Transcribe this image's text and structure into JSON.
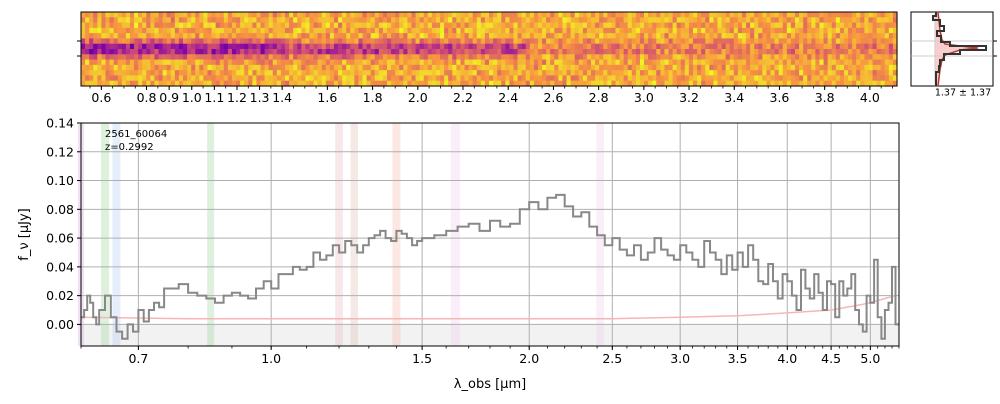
{
  "chart_data": [
    {
      "type": "heatmap",
      "panel": "2d-spectrum",
      "colormap": "plasma",
      "x_tick_labels": [
        "0.6",
        "0.8",
        "0.9",
        "1.0",
        "1.1",
        "1.2",
        "1.3",
        "1.4",
        "1.6",
        "1.8",
        "2.0",
        "2.2",
        "2.4",
        "2.6",
        "2.8",
        "3.0",
        "3.2",
        "3.4",
        "3.6",
        "3.8",
        "4.0"
      ],
      "x_ticks": [
        0.6,
        0.8,
        0.9,
        1.0,
        1.1,
        1.2,
        1.3,
        1.4,
        1.6,
        1.8,
        2.0,
        2.2,
        2.4,
        2.6,
        2.8,
        3.0,
        3.2,
        3.4,
        3.6,
        3.8,
        4.0
      ],
      "xlim": [
        0.51,
        4.12
      ]
    },
    {
      "type": "line",
      "panel": "profile",
      "annotation": "1.37 ± 1.37",
      "colors": {
        "data": "#333333",
        "model_fill": "#f4c2c2",
        "model_line": "#c0392b"
      }
    },
    {
      "type": "line",
      "panel": "1d-spectrum",
      "title": "",
      "annotation_lines": [
        "2561_60064",
        "z=0.2992"
      ],
      "xlabel": "λ_obs [μm]",
      "ylabel": "f_ν [μJy]",
      "x_scale": "log",
      "xlim": [
        0.6,
        5.4
      ],
      "ylim": [
        -0.015,
        0.14
      ],
      "x_ticks": [
        0.7,
        1.0,
        1.5,
        2.0,
        2.5,
        3.0,
        3.5,
        4.0,
        4.5,
        5.0
      ],
      "x_tick_labels": [
        "0.7",
        "1.0",
        "1.5",
        "2.0",
        "2.5",
        "3.0",
        "3.5",
        "4.0",
        "4.5",
        "5.0"
      ],
      "y_ticks": [
        0.0,
        0.02,
        0.04,
        0.06,
        0.08,
        0.1,
        0.12,
        0.14
      ],
      "y_tick_labels": [
        "0.00",
        "0.02",
        "0.04",
        "0.06",
        "0.08",
        "0.10",
        "0.12",
        "0.14"
      ],
      "grid": true,
      "emission_bands": [
        {
          "center": 0.6,
          "width": 0.01,
          "color": "#c9a0dc"
        },
        {
          "center": 0.64,
          "width": 0.014,
          "color": "#8fd18f"
        },
        {
          "center": 0.66,
          "width": 0.014,
          "color": "#a9c8f0"
        },
        {
          "center": 0.85,
          "width": 0.016,
          "color": "#8fd18f"
        },
        {
          "center": 1.2,
          "width": 0.025,
          "color": "#e8b4b8"
        },
        {
          "center": 1.25,
          "width": 0.025,
          "color": "#d9b8a8"
        },
        {
          "center": 1.4,
          "width": 0.03,
          "color": "#f4b0a0"
        },
        {
          "center": 1.64,
          "width": 0.04,
          "color": "#f0c8e8"
        },
        {
          "center": 2.42,
          "width": 0.05,
          "color": "#f0c8e8"
        }
      ],
      "series": [
        {
          "label_key": "data",
          "color": "#888888",
          "x": [
            0.6,
            0.605,
            0.61,
            0.615,
            0.62,
            0.625,
            0.63,
            0.64,
            0.65,
            0.66,
            0.67,
            0.68,
            0.69,
            0.7,
            0.71,
            0.72,
            0.73,
            0.74,
            0.75,
            0.76,
            0.78,
            0.8,
            0.82,
            0.84,
            0.86,
            0.88,
            0.9,
            0.92,
            0.94,
            0.96,
            0.98,
            1.0,
            1.02,
            1.04,
            1.06,
            1.08,
            1.1,
            1.12,
            1.14,
            1.16,
            1.18,
            1.2,
            1.22,
            1.24,
            1.26,
            1.28,
            1.3,
            1.32,
            1.34,
            1.36,
            1.38,
            1.4,
            1.42,
            1.44,
            1.46,
            1.48,
            1.5,
            1.55,
            1.6,
            1.65,
            1.7,
            1.75,
            1.8,
            1.85,
            1.9,
            1.95,
            2.0,
            2.05,
            2.1,
            2.15,
            2.2,
            2.25,
            2.3,
            2.35,
            2.4,
            2.45,
            2.5,
            2.55,
            2.6,
            2.65,
            2.7,
            2.75,
            2.8,
            2.85,
            2.9,
            2.95,
            3.0,
            3.05,
            3.1,
            3.15,
            3.2,
            3.25,
            3.3,
            3.35,
            3.4,
            3.45,
            3.5,
            3.55,
            3.6,
            3.65,
            3.7,
            3.75,
            3.8,
            3.85,
            3.9,
            3.95,
            4.0,
            4.05,
            4.1,
            4.15,
            4.2,
            4.25,
            4.3,
            4.35,
            4.4,
            4.45,
            4.5,
            4.55,
            4.6,
            4.65,
            4.7,
            4.75,
            4.8,
            4.85,
            4.9,
            4.95,
            5.0,
            5.05,
            5.1,
            5.15,
            5.2,
            5.25,
            5.3,
            5.35,
            5.4
          ],
          "y": [
            0.005,
            0.01,
            0.02,
            0.015,
            0.005,
            0.0,
            0.01,
            0.02,
            0.005,
            -0.005,
            -0.01,
            0.0,
            -0.005,
            0.01,
            0.002,
            0.01,
            0.015,
            0.012,
            0.025,
            0.025,
            0.028,
            0.022,
            0.02,
            0.018,
            0.015,
            0.02,
            0.022,
            0.02,
            0.018,
            0.025,
            0.03,
            0.025,
            0.035,
            0.035,
            0.04,
            0.038,
            0.04,
            0.05,
            0.045,
            0.048,
            0.055,
            0.05,
            0.058,
            0.055,
            0.05,
            0.055,
            0.06,
            0.062,
            0.065,
            0.06,
            0.058,
            0.065,
            0.063,
            0.06,
            0.055,
            0.058,
            0.06,
            0.062,
            0.065,
            0.068,
            0.07,
            0.065,
            0.072,
            0.068,
            0.07,
            0.08,
            0.085,
            0.08,
            0.088,
            0.09,
            0.082,
            0.075,
            0.078,
            0.068,
            0.062,
            0.055,
            0.06,
            0.052,
            0.048,
            0.055,
            0.045,
            0.05,
            0.06,
            0.052,
            0.048,
            0.045,
            0.055,
            0.05,
            0.045,
            0.04,
            0.058,
            0.05,
            0.045,
            0.035,
            0.048,
            0.038,
            0.05,
            0.04,
            0.055,
            0.045,
            0.03,
            0.028,
            0.042,
            0.03,
            0.018,
            0.035,
            0.03,
            0.02,
            0.01,
            0.038,
            0.025,
            0.018,
            0.035,
            0.022,
            0.01,
            0.03,
            0.028,
            0.005,
            0.03,
            0.02,
            0.025,
            0.035,
            0.01,
            0.0,
            -0.005,
            0.02,
            0.015,
            0.045,
            0.005,
            -0.01,
            0.01,
            0.015,
            0.04,
            0.0,
            0.0
          ]
        },
        {
          "label_key": "error",
          "color": "#f7b6b6",
          "x": [
            0.6,
            0.8,
            1.0,
            1.5,
            2.0,
            2.5,
            3.0,
            3.5,
            4.0,
            4.5,
            4.8,
            5.0,
            5.2,
            5.35
          ],
          "y": [
            0.005,
            0.004,
            0.004,
            0.004,
            0.004,
            0.004,
            0.005,
            0.006,
            0.008,
            0.01,
            0.013,
            0.015,
            0.018,
            0.02
          ]
        }
      ]
    }
  ]
}
